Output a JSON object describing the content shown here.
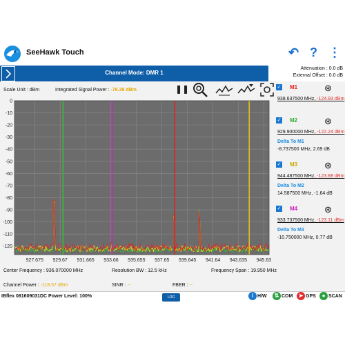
{
  "app": {
    "title": "SeeHawk Touch",
    "toolbar_icons": [
      "back-arrow-icon",
      "help-icon",
      "more-vert-icon"
    ]
  },
  "header": {
    "channel_mode": "Channel Mode: DMR 1",
    "attenuation": "Attenuation : 0.0 dB",
    "external_offset": "External Offset : 0.0 dB"
  },
  "measurement": {
    "scale_unit": "Scale Unit : dBm",
    "integrated_power_label": "Integrated Signal Power :",
    "integrated_power_value": "-76.39 dBm"
  },
  "chart_data": {
    "type": "line",
    "yticks": [
      "0",
      "-10",
      "-20",
      "-30",
      "-40",
      "-50",
      "-60",
      "-70",
      "-80",
      "-90",
      "-100",
      "-110",
      "-120"
    ],
    "xticks": [
      "927.675",
      "929.67",
      "931.665",
      "933.66",
      "935.655",
      "937.65",
      "939.645",
      "941.64",
      "943.635",
      "945.63"
    ],
    "ylim": [
      -127,
      0
    ],
    "xlim": [
      926.095,
      946.045
    ],
    "grid": true,
    "colors": {
      "background": "#6c6c6c",
      "grid": "#8a8a8a",
      "trace_red": "#e02020",
      "trace_yellow": "#f0e010",
      "trace_green": "#30c030"
    },
    "markers": [
      {
        "name": "M1",
        "x": 938.6375,
        "color": "#e02020"
      },
      {
        "name": "M2",
        "x": 929.9,
        "color": "#30c030"
      },
      {
        "name": "M3",
        "x": 944.4875,
        "color": "#e0c020"
      },
      {
        "name": "M4",
        "x": 933.7375,
        "color": "#d020c0"
      }
    ],
    "peaks": [
      {
        "x": 929.2,
        "y": -85
      },
      {
        "x": 933.75,
        "y": -120
      },
      {
        "x": 938.55,
        "y": -98
      },
      {
        "x": 940.6,
        "y": -92
      }
    ],
    "noise_floor": -122
  },
  "readouts": {
    "center_frequency": "Center Frequency : 936.070000 MHz",
    "resolution_bw": "Resolution BW : 12.5 kHz",
    "frequency_span": "Frequency Span : 19.950 MHz",
    "channel_power_label": "Channel Power :",
    "channel_power_value": "-118.57 dBm",
    "sinr_label": "SINR :",
    "sinr_value": "--",
    "fber_label": "FBER :",
    "fber_value": "--"
  },
  "marker_panel": [
    {
      "label": "M1",
      "color": "#e02020",
      "freq": "938.637500 MHz",
      "level": "-124.93 dBm",
      "delta_label": "",
      "delta_value": ""
    },
    {
      "label": "M2",
      "color": "#30b030",
      "freq": "929.900000 MHz",
      "level": "-122.24 dBm",
      "delta_label": "Delta To M1",
      "delta_value": "-8.737500 MHz, 2.69 dB"
    },
    {
      "label": "M3",
      "color": "#c8a800",
      "freq": "944.487500 MHz",
      "level": "-123.88 dBm",
      "delta_label": "Delta To M2",
      "delta_value": "14.587500 MHz, -1.64 dB"
    },
    {
      "label": "M4",
      "color": "#d020c0",
      "freq": "933.737500 MHz",
      "level": "-123.11 dBm",
      "delta_label": "Delta To M3",
      "delta_value": "-10.750000 MHz, 0.77 dB"
    }
  ],
  "status": {
    "device": "IBflex 081609031",
    "power": "DC Power Level: 100%",
    "log": "LOG",
    "hw": "H/W",
    "com": "COM",
    "gps": "GPS",
    "scan": "SCAN"
  }
}
